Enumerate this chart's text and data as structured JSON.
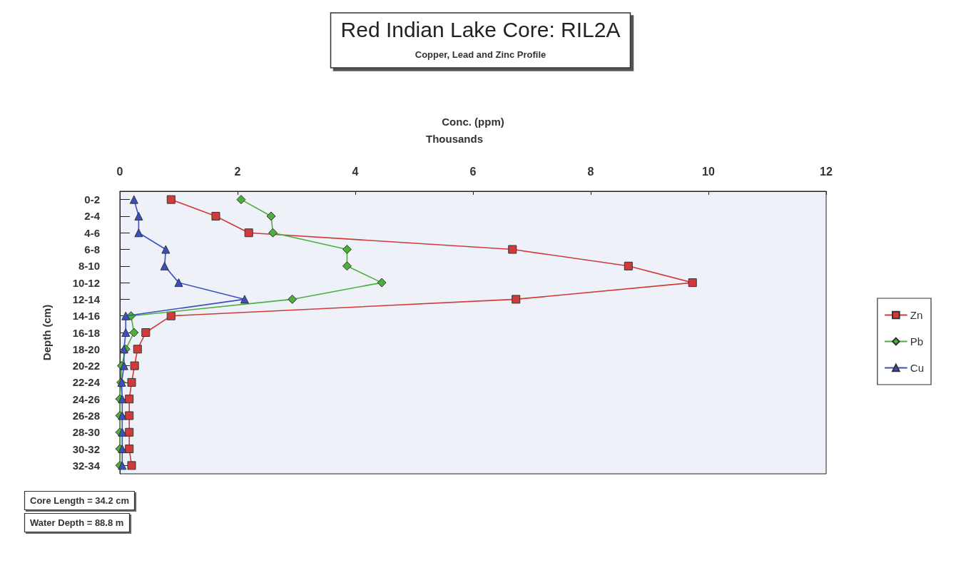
{
  "chart_data": {
    "type": "line",
    "title": "Red Indian Lake Core: RIL2A",
    "subtitle": "Copper, Lead and Zinc Profile",
    "xlabel": "Conc. (ppm)",
    "ylabel": "Depth (cm)",
    "annotations": [
      "Thousands",
      "Core Length = 34.2 cm",
      "Water Depth = 88.8 m"
    ],
    "orientation": "horizontal",
    "categories": [
      "0-2",
      "2-4",
      "4-6",
      "6-8",
      "8-10",
      "10-12",
      "12-14",
      "14-16",
      "16-18",
      "18-20",
      "20-22",
      "22-24",
      "24-26",
      "26-28",
      "28-30",
      "30-32",
      "32-34"
    ],
    "xlim": [
      0,
      12
    ],
    "xticks": [
      0,
      2,
      4,
      6,
      8,
      10,
      12
    ],
    "grid": false,
    "legend": "right",
    "line_style": "solid",
    "series": [
      {
        "name": "Zn",
        "color": "#d03a3a",
        "marker": "square",
        "values": [
          0.87,
          1.63,
          2.19,
          6.67,
          8.64,
          9.73,
          6.73,
          0.87,
          0.44,
          0.3,
          0.25,
          0.2,
          0.16,
          0.16,
          0.16,
          0.16,
          0.2
        ]
      },
      {
        "name": "Pb",
        "color": "#4caf3c",
        "marker": "diamond",
        "values": [
          2.06,
          2.57,
          2.6,
          3.86,
          3.86,
          4.45,
          2.93,
          0.19,
          0.24,
          0.1,
          0.03,
          0.02,
          0,
          0,
          0,
          0,
          0
        ]
      },
      {
        "name": "Cu",
        "color": "#3a4fc0",
        "marker": "triangle",
        "values": [
          0.24,
          0.32,
          0.32,
          0.78,
          0.76,
          1.0,
          2.12,
          0.1,
          0.1,
          0.07,
          0.07,
          0.03,
          0.04,
          0.04,
          0.04,
          0.04,
          0.04
        ]
      }
    ]
  }
}
